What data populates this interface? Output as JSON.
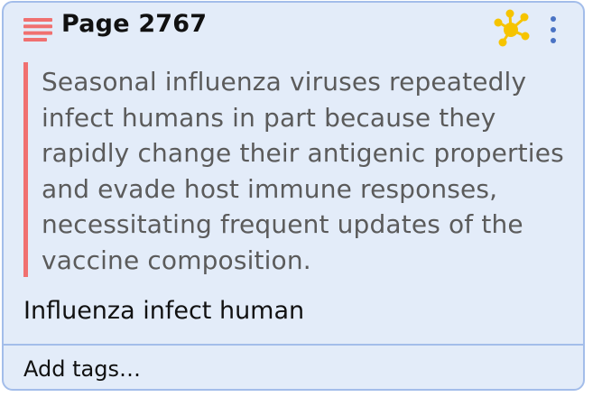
{
  "header": {
    "title": "Page 2767",
    "menu_icon": "list-lines-icon",
    "graph_icon": "network-graph-icon",
    "more_icon": "vertical-ellipsis-icon"
  },
  "quote": {
    "text": "Seasonal influenza viruses repeatedly infect humans in part because they rapidly change their antigenic properties and evade host immune responses, necessitating frequent updates of the vaccine composition."
  },
  "note": {
    "text": "Influenza infect human"
  },
  "tags": {
    "placeholder": "Add tags…"
  },
  "colors": {
    "card_bg": "#e3ecf9",
    "card_border": "#a3bdea",
    "accent_red": "#f07070",
    "graph_yellow": "#f6c400"
  }
}
